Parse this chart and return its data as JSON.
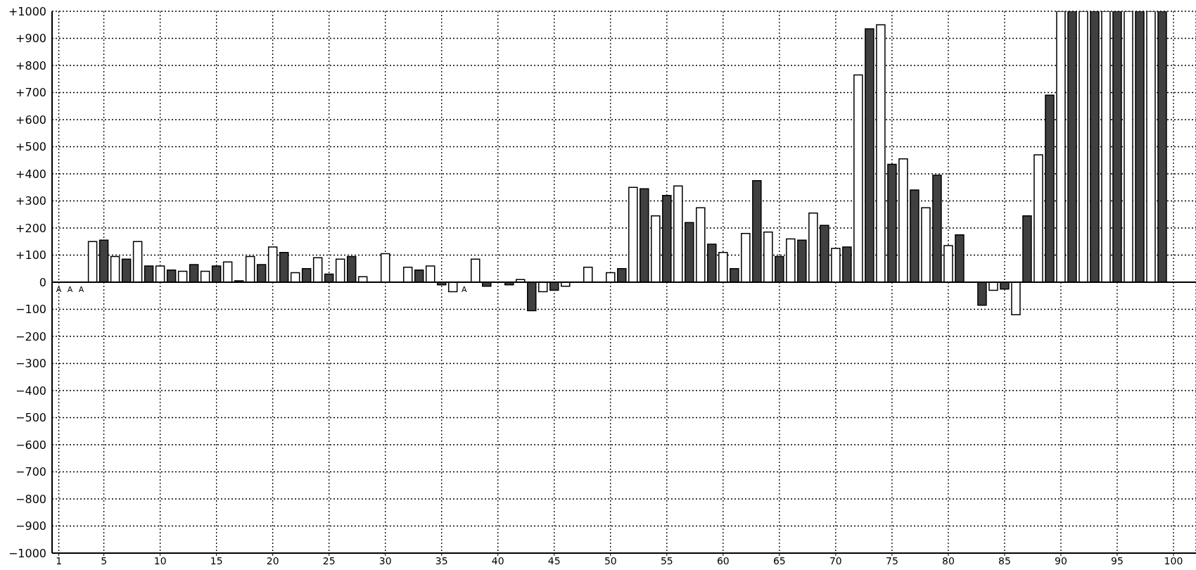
{
  "chart_data": {
    "type": "bar",
    "x": [
      1,
      2,
      3,
      4,
      5,
      6,
      7,
      8,
      9,
      10,
      11,
      12,
      13,
      14,
      15,
      16,
      17,
      18,
      19,
      20,
      21,
      22,
      23,
      24,
      25,
      26,
      27,
      28,
      29,
      30,
      31,
      32,
      33,
      34,
      35,
      36,
      37,
      38,
      39,
      40,
      41,
      42,
      43,
      44,
      45,
      46,
      47,
      48,
      49,
      50,
      51,
      52,
      53,
      54,
      55,
      56,
      57,
      58,
      59,
      60,
      61,
      62,
      63,
      64,
      65,
      66,
      67,
      68,
      69,
      70,
      71,
      72,
      73,
      74,
      75,
      76,
      77,
      78,
      79,
      80,
      81,
      82,
      83,
      84,
      85,
      86,
      87,
      88,
      89,
      90,
      91,
      92,
      93,
      94,
      95,
      96,
      97,
      98,
      99
    ],
    "values": [
      0,
      0,
      0,
      150,
      155,
      95,
      85,
      150,
      60,
      60,
      45,
      40,
      65,
      40,
      60,
      75,
      5,
      95,
      65,
      130,
      110,
      35,
      50,
      90,
      30,
      85,
      95,
      20,
      null,
      105,
      null,
      55,
      45,
      60,
      -10,
      -35,
      0,
      85,
      -15,
      null,
      -10,
      10,
      -105,
      -35,
      -30,
      -15,
      null,
      55,
      null,
      35,
      50,
      350,
      345,
      245,
      320,
      355,
      220,
      275,
      140,
      110,
      50,
      180,
      375,
      185,
      95,
      160,
      155,
      255,
      210,
      125,
      130,
      765,
      935,
      950,
      435,
      455,
      340,
      275,
      395,
      135,
      175,
      null,
      -85,
      -30,
      -25,
      -120,
      245,
      470,
      690,
      1000,
      1000,
      1000,
      1000,
      1000,
      1000,
      1000,
      1000,
      1000,
      1000
    ],
    "colors": [
      "#ffffff",
      "#404040",
      "#ffffff",
      "#ffffff",
      "#404040",
      "#ffffff",
      "#404040",
      "#ffffff",
      "#404040",
      "#ffffff",
      "#404040",
      "#ffffff",
      "#404040",
      "#ffffff",
      "#404040",
      "#ffffff",
      "#404040",
      "#ffffff",
      "#404040",
      "#ffffff",
      "#404040",
      "#ffffff",
      "#404040",
      "#ffffff",
      "#404040",
      "#ffffff",
      "#404040",
      "#ffffff",
      "#404040",
      "#ffffff",
      "#404040",
      "#ffffff",
      "#404040",
      "#ffffff",
      "#404040",
      "#ffffff",
      "#404040",
      "#ffffff",
      "#404040",
      "#ffffff",
      "#404040",
      "#ffffff",
      "#404040",
      "#ffffff",
      "#404040",
      "#ffffff",
      "#404040",
      "#ffffff",
      "#404040",
      "#ffffff",
      "#404040",
      "#ffffff",
      "#404040",
      "#ffffff",
      "#404040",
      "#ffffff",
      "#404040",
      "#ffffff",
      "#404040",
      "#ffffff",
      "#404040",
      "#ffffff",
      "#404040",
      "#ffffff",
      "#404040",
      "#ffffff",
      "#404040",
      "#ffffff",
      "#404040",
      "#ffffff",
      "#404040",
      "#ffffff",
      "#404040",
      "#ffffff",
      "#404040",
      "#ffffff",
      "#404040",
      "#ffffff",
      "#404040",
      "#ffffff",
      "#404040",
      "#ffffff",
      "#404040",
      "#ffffff",
      "#404040",
      "#ffffff",
      "#404040",
      "#ffffff",
      "#404040",
      "#ffffff",
      "#404040",
      "#ffffff",
      "#404040",
      "#ffffff",
      "#404040",
      "#ffffff",
      "#404040",
      "#ffffff",
      "#404040"
    ],
    "xlim": [
      0.4,
      102
    ],
    "xticks": [
      1,
      5,
      10,
      15,
      20,
      25,
      30,
      35,
      40,
      45,
      50,
      55,
      60,
      65,
      70,
      75,
      80,
      85,
      90,
      95,
      100
    ],
    "ylim": [
      -1000,
      1000
    ],
    "yticks": [
      {
        "value": -1000,
        "label": "−1000"
      },
      {
        "value": -900,
        "label": "−900"
      },
      {
        "value": -800,
        "label": "−800"
      },
      {
        "value": -700,
        "label": "−700"
      },
      {
        "value": -600,
        "label": "−600"
      },
      {
        "value": -500,
        "label": "−500"
      },
      {
        "value": -400,
        "label": "−400"
      },
      {
        "value": -300,
        "label": "−300"
      },
      {
        "value": -200,
        "label": "−200"
      },
      {
        "value": -100,
        "label": "−100"
      },
      0,
      {
        "value": 100,
        "label": "+100"
      },
      {
        "value": 200,
        "label": "+200"
      },
      {
        "value": 300,
        "label": "+300"
      },
      {
        "value": 400,
        "label": "+400"
      },
      {
        "value": 500,
        "label": "+500"
      },
      {
        "value": 600,
        "label": "+600"
      },
      {
        "value": 700,
        "label": "+700"
      },
      {
        "value": 800,
        "label": "+800"
      },
      {
        "value": 900,
        "label": "+900"
      },
      {
        "value": 1000,
        "label": "+1000"
      }
    ],
    "grid": true,
    "value_labels": [
      "A",
      "A",
      "A",
      null,
      null,
      null,
      null,
      null,
      null,
      null,
      null,
      null,
      null,
      null,
      null,
      null,
      null,
      null,
      null,
      null,
      null,
      null,
      null,
      null,
      null,
      null,
      null,
      null,
      null,
      null,
      null,
      null,
      null,
      null,
      null,
      null,
      "A",
      null,
      null,
      null,
      null,
      null,
      null,
      null,
      null,
      null,
      null,
      null,
      null,
      null,
      null,
      null,
      null,
      null,
      null,
      null,
      null,
      null,
      null,
      null,
      null,
      null,
      null,
      null,
      null,
      null,
      null,
      null,
      null,
      null,
      null,
      null,
      null,
      null,
      null,
      null,
      null,
      null,
      null,
      null,
      null,
      null,
      null,
      null,
      null,
      null,
      null,
      null,
      null,
      null,
      null,
      null,
      null,
      null,
      null,
      null,
      null,
      null,
      null
    ]
  }
}
